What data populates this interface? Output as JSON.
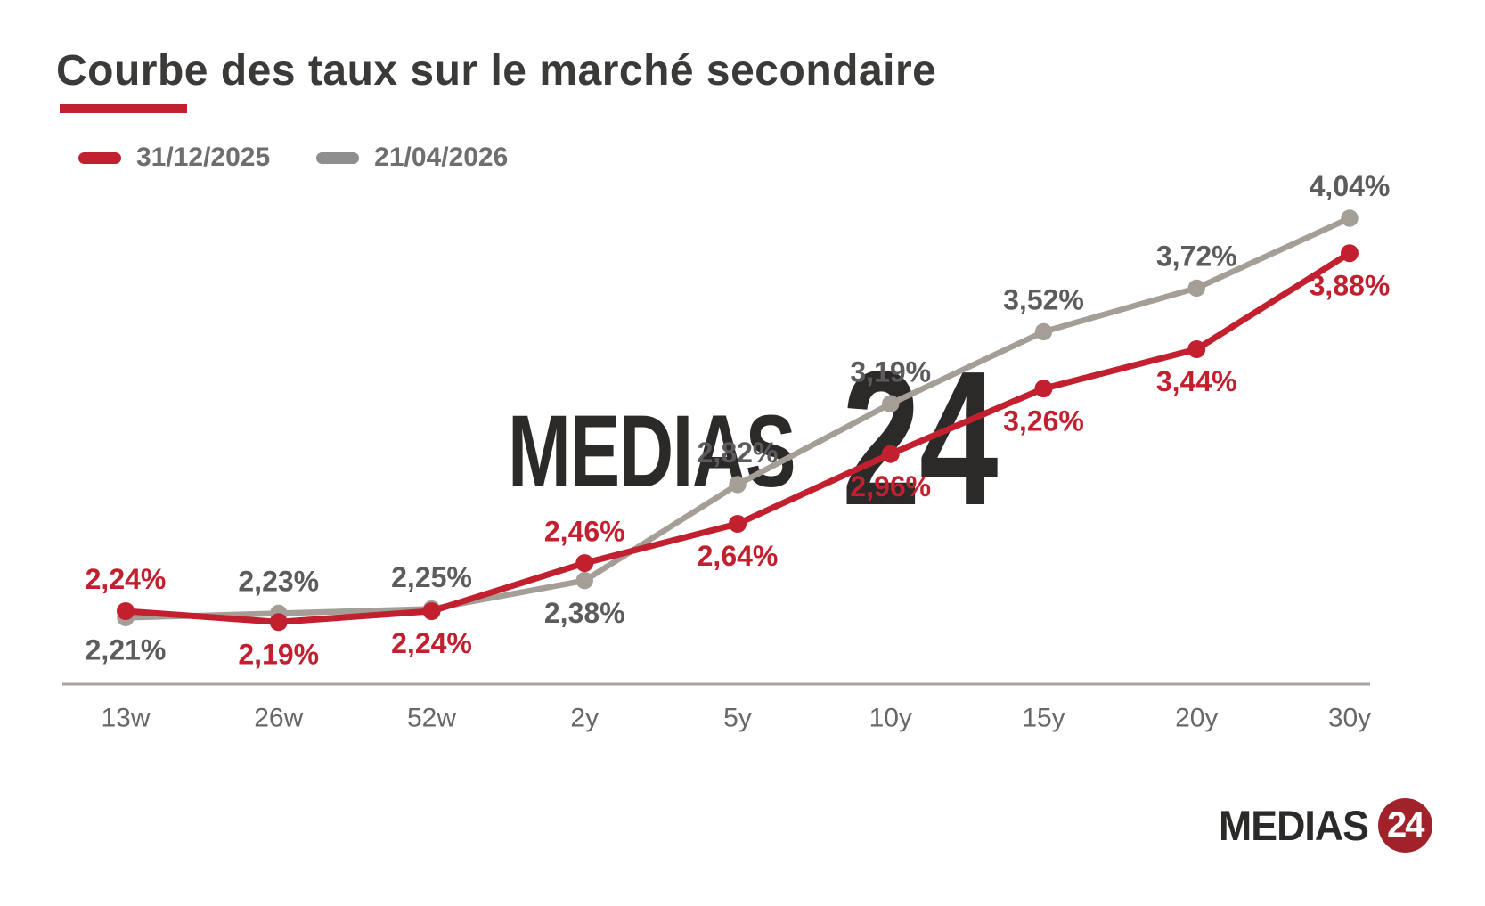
{
  "page": {
    "background": "#ffffff"
  },
  "header": {
    "title": "Courbe des taux sur le marché secondaire",
    "title_color": "#3b3a39",
    "underline_color": "#c2202f"
  },
  "legend": {
    "items": [
      {
        "label": "31/12/2025",
        "color": "#c2202f"
      },
      {
        "label": "21/04/2026",
        "color": "#8e8e8e"
      }
    ],
    "text_color": "#6f6e6d"
  },
  "chart_data": {
    "type": "line",
    "title": "Courbe des taux sur le marché secondaire",
    "xlabel": "",
    "ylabel": "",
    "grid": false,
    "legend_position": "top-left",
    "ylim": [
      1.9,
      4.35
    ],
    "categories": [
      "13w",
      "26w",
      "52w",
      "2y",
      "5y",
      "10y",
      "15y",
      "20y",
      "30y"
    ],
    "series": [
      {
        "name": "31/12/2025",
        "color": "#c2202f",
        "label_color": "#c2202f",
        "values": [
          2.24,
          2.19,
          2.24,
          2.46,
          2.64,
          2.96,
          3.26,
          3.44,
          3.88
        ],
        "labels": [
          "2,24%",
          "2,19%",
          "2,24%",
          "2,46%",
          "2,64%",
          "2,96%",
          "3,26%",
          "3,44%",
          "3,88%"
        ]
      },
      {
        "name": "21/04/2026",
        "color": "#a49e97",
        "label_color": "#5d5b5b",
        "values": [
          2.21,
          2.23,
          2.25,
          2.38,
          2.82,
          3.19,
          3.52,
          3.72,
          4.04
        ],
        "labels": [
          "2,21%",
          "2,23%",
          "2,25%",
          "2,38%",
          "2,82%",
          "3,19%",
          "3,52%",
          "3,72%",
          "4,04%"
        ]
      }
    ],
    "axis_color": "#a9a39c",
    "tick_color": "#686766"
  },
  "watermark": {
    "text": "MEDIAS",
    "number": "24",
    "color": "#2b2a29"
  },
  "logo": {
    "text": "MEDIAS",
    "number": "24",
    "text_color": "#2b2a29",
    "circle_color": "#a2222b",
    "number_color": "#ffffff"
  }
}
